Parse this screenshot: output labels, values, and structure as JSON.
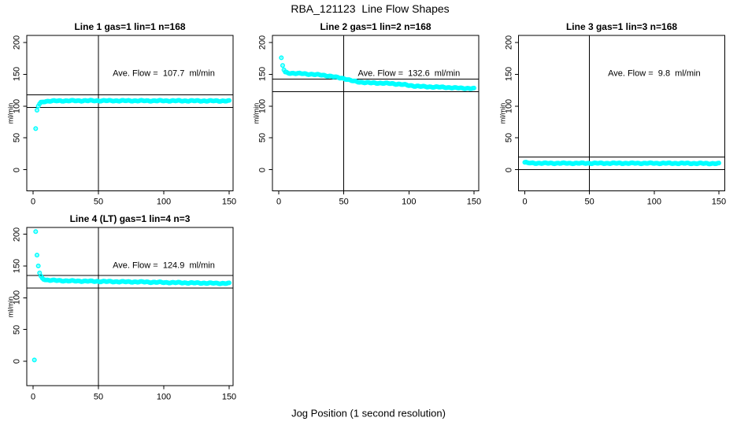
{
  "figure": {
    "title": "RBA_121123  Line Flow Shapes",
    "xlabel": "Jog Position (1 second resolution)",
    "background": "#FFFFFF",
    "marker_color": "#00FFFF",
    "line_color": "#000000",
    "text_color": "#000000"
  },
  "chart_data": [
    {
      "type": "scatter",
      "title": "Line 1 gas=1 lin=1 n=168",
      "ylabel": "ml/min",
      "x_ticks": [
        0,
        50,
        100,
        150
      ],
      "y_ticks": [
        0,
        50,
        100,
        150,
        200
      ],
      "xlim": [
        0,
        150
      ],
      "ylim": [
        -30,
        210
      ],
      "n": 168,
      "ave_flow": 107.7,
      "ave_flow_label": "Ave. Flow =  107.7  ml/min",
      "hlines": [
        117.7,
        97.7
      ],
      "vline": 50,
      "series": {
        "name": "line1-flow",
        "x_start": 2,
        "x_end": 150,
        "keypoints": [
          [
            2,
            64.5
          ],
          [
            3,
            93.5
          ],
          [
            4,
            100
          ],
          [
            5,
            103.5
          ],
          [
            6,
            105.5
          ],
          [
            8,
            107
          ],
          [
            12,
            107.8
          ],
          [
            20,
            108.2
          ],
          [
            40,
            108.4
          ],
          [
            80,
            108.3
          ],
          [
            120,
            108.2
          ],
          [
            150,
            108
          ]
        ]
      }
    },
    {
      "type": "scatter",
      "title": "Line 2 gas=1 lin=2 n=168",
      "ylabel": "ml/min",
      "x_ticks": [
        0,
        50,
        100,
        150
      ],
      "y_ticks": [
        0,
        50,
        100,
        150,
        200
      ],
      "xlim": [
        0,
        150
      ],
      "ylim": [
        -30,
        210
      ],
      "n": 168,
      "ave_flow": 132.6,
      "ave_flow_label": "Ave. Flow =  132.6  ml/min",
      "hlines": [
        142.6,
        122.6
      ],
      "vline": 50,
      "series": {
        "name": "line2-flow",
        "x_start": 2,
        "x_end": 150,
        "keypoints": [
          [
            2,
            176
          ],
          [
            3,
            164
          ],
          [
            4,
            157
          ],
          [
            5,
            153.5
          ],
          [
            7,
            152
          ],
          [
            12,
            151.5
          ],
          [
            18,
            151
          ],
          [
            25,
            150
          ],
          [
            32,
            149
          ],
          [
            38,
            147.5
          ],
          [
            45,
            145
          ],
          [
            50,
            143.5
          ],
          [
            54,
            141
          ],
          [
            58,
            139
          ],
          [
            63,
            137.5
          ],
          [
            70,
            136.5
          ],
          [
            80,
            136
          ],
          [
            88,
            135.2
          ],
          [
            95,
            134
          ],
          [
            100,
            132.5
          ],
          [
            105,
            131.5
          ],
          [
            112,
            130.5
          ],
          [
            120,
            130
          ],
          [
            128,
            129.5
          ],
          [
            136,
            128.5
          ],
          [
            143,
            128
          ],
          [
            150,
            127.5
          ]
        ]
      }
    },
    {
      "type": "scatter",
      "title": "Line 3 gas=1 lin=3 n=168",
      "ylabel": "ml/min",
      "x_ticks": [
        0,
        50,
        100,
        150
      ],
      "y_ticks": [
        0,
        50,
        100,
        150,
        200
      ],
      "xlim": [
        0,
        150
      ],
      "ylim": [
        -30,
        210
      ],
      "n": 168,
      "ave_flow": 9.8,
      "ave_flow_label": "Ave. Flow =  9.8  ml/min",
      "hlines": [
        19.8,
        -0.2
      ],
      "vline": 50,
      "series": {
        "name": "line3-flow",
        "x_start": 0,
        "x_end": 150,
        "keypoints": [
          [
            0,
            11.5
          ],
          [
            2,
            10.5
          ],
          [
            5,
            10.2
          ],
          [
            20,
            10
          ],
          [
            60,
            10
          ],
          [
            100,
            10
          ],
          [
            130,
            9.8
          ],
          [
            150,
            9.5
          ]
        ]
      }
    },
    {
      "type": "scatter",
      "title": "Line 4 (LT) gas=1 lin=4 n=3",
      "ylabel": "ml/min",
      "x_ticks": [
        0,
        50,
        100,
        150
      ],
      "y_ticks": [
        0,
        50,
        100,
        150,
        200
      ],
      "xlim": [
        0,
        150
      ],
      "ylim": [
        -30,
        210
      ],
      "n": 3,
      "ave_flow": 124.9,
      "ave_flow_label": "Ave. Flow =  124.9  ml/min",
      "hlines": [
        134.9,
        114.9
      ],
      "vline": 50,
      "series": {
        "name": "line4-flow",
        "x_start": 1,
        "x_end": 150,
        "keypoints": [
          [
            1,
            2
          ],
          [
            2,
            204
          ],
          [
            3,
            167
          ],
          [
            4,
            150
          ],
          [
            5,
            139
          ],
          [
            6,
            134
          ],
          [
            7,
            131
          ],
          [
            8,
            129.5
          ],
          [
            10,
            128
          ],
          [
            15,
            127.3
          ],
          [
            25,
            126.5
          ],
          [
            40,
            126
          ],
          [
            55,
            125.5
          ],
          [
            70,
            125
          ],
          [
            85,
            124.7
          ],
          [
            100,
            124
          ],
          [
            115,
            123.5
          ],
          [
            130,
            123
          ],
          [
            140,
            122.7
          ],
          [
            150,
            122.5
          ]
        ]
      }
    }
  ]
}
